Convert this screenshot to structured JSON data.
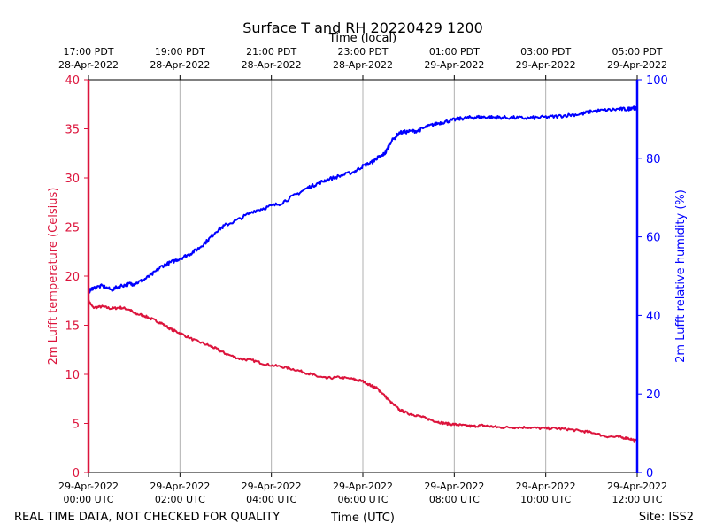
{
  "chart_data": {
    "type": "line",
    "title": "Surface T and RH 20220429 1200",
    "top_axis_label": "Time (local)",
    "xlabel": "Time (UTC)",
    "ylabel_left": "2m Lufft temperature (Celsius)",
    "ylabel_right": "2m Lufft relative humidity (%)",
    "footer_left": "REAL TIME DATA, NOT CHECKED FOR QUALITY",
    "footer_right": "Site: ISS2",
    "x_range_hours": [
      0,
      12
    ],
    "ylim_left": [
      0,
      40
    ],
    "ylim_right": [
      0,
      100
    ],
    "grid": "vertical",
    "colors": {
      "temperature": "#dc143c",
      "humidity": "#0000ff",
      "grid": "#b0b0b0",
      "axis": "#000000"
    },
    "x_ticks_bottom": [
      {
        "hour": 0,
        "line1": "29-Apr-2022",
        "line2": "00:00 UTC"
      },
      {
        "hour": 2,
        "line1": "29-Apr-2022",
        "line2": "02:00 UTC"
      },
      {
        "hour": 4,
        "line1": "29-Apr-2022",
        "line2": "04:00 UTC"
      },
      {
        "hour": 6,
        "line1": "29-Apr-2022",
        "line2": "06:00 UTC"
      },
      {
        "hour": 8,
        "line1": "29-Apr-2022",
        "line2": "08:00 UTC"
      },
      {
        "hour": 10,
        "line1": "29-Apr-2022",
        "line2": "10:00 UTC"
      },
      {
        "hour": 12,
        "line1": "29-Apr-2022",
        "line2": "12:00 UTC"
      }
    ],
    "x_ticks_top": [
      {
        "hour": 0,
        "line1": "17:00 PDT",
        "line2": "28-Apr-2022"
      },
      {
        "hour": 2,
        "line1": "19:00 PDT",
        "line2": "28-Apr-2022"
      },
      {
        "hour": 4,
        "line1": "21:00 PDT",
        "line2": "28-Apr-2022"
      },
      {
        "hour": 6,
        "line1": "23:00 PDT",
        "line2": "28-Apr-2022"
      },
      {
        "hour": 8,
        "line1": "01:00 PDT",
        "line2": "29-Apr-2022"
      },
      {
        "hour": 10,
        "line1": "03:00 PDT",
        "line2": "29-Apr-2022"
      },
      {
        "hour": 12,
        "line1": "05:00 PDT",
        "line2": "29-Apr-2022"
      }
    ],
    "y_ticks_left": [
      0,
      5,
      10,
      15,
      20,
      25,
      30,
      35,
      40
    ],
    "y_ticks_right": [
      0,
      20,
      40,
      60,
      80,
      100
    ],
    "series": [
      {
        "name": "Temperature",
        "axis": "left",
        "unit": "Celsius",
        "x": [
          0,
          0.1,
          0.3,
          0.5,
          0.7,
          0.9,
          1.0,
          1.2,
          1.4,
          1.6,
          1.8,
          2.0,
          2.3,
          2.6,
          2.8,
          3.0,
          3.3,
          3.6,
          3.9,
          4.2,
          4.5,
          4.8,
          5.0,
          5.2,
          5.5,
          5.8,
          6.0,
          6.2,
          6.3,
          6.4,
          6.6,
          6.8,
          7.0,
          7.2,
          7.4,
          7.6,
          7.8,
          8.0,
          8.2,
          8.4,
          8.6,
          8.8,
          9.0,
          9.3,
          9.6,
          9.9,
          10.2,
          10.5,
          10.8,
          11.0,
          11.3,
          11.6,
          11.8,
          12.0
        ],
        "y": [
          17.5,
          16.8,
          16.9,
          16.7,
          16.8,
          16.6,
          16.2,
          16.0,
          15.6,
          15.2,
          14.6,
          14.2,
          13.5,
          13.0,
          12.6,
          12.1,
          11.6,
          11.4,
          11.0,
          10.8,
          10.5,
          10.1,
          9.8,
          9.6,
          9.7,
          9.5,
          9.3,
          8.8,
          8.6,
          8.2,
          7.2,
          6.4,
          6.0,
          5.8,
          5.5,
          5.2,
          5.0,
          4.9,
          4.8,
          4.7,
          4.8,
          4.7,
          4.6,
          4.6,
          4.6,
          4.5,
          4.5,
          4.4,
          4.2,
          4.1,
          3.7,
          3.6,
          3.5,
          3.2
        ]
      },
      {
        "name": "Relative humidity",
        "axis": "right",
        "unit": "%",
        "x": [
          0,
          0.1,
          0.3,
          0.5,
          0.7,
          0.9,
          1.0,
          1.2,
          1.4,
          1.6,
          1.8,
          2.0,
          2.2,
          2.4,
          2.6,
          2.8,
          3.0,
          3.3,
          3.6,
          3.9,
          4.2,
          4.5,
          4.8,
          5.0,
          5.2,
          5.5,
          5.8,
          6.0,
          6.2,
          6.3,
          6.4,
          6.5,
          6.6,
          6.8,
          7.0,
          7.2,
          7.4,
          7.6,
          7.8,
          8.0,
          8.2,
          8.4,
          8.6,
          8.8,
          9.0,
          9.3,
          9.6,
          9.9,
          10.2,
          10.5,
          10.8,
          11.0,
          11.3,
          11.6,
          11.8,
          11.9,
          12.0
        ],
        "y": [
          46,
          47,
          47.5,
          46.5,
          47.5,
          48,
          48,
          49,
          50.5,
          52.5,
          53.5,
          54.5,
          55.5,
          57,
          59,
          61.5,
          63,
          64.5,
          66.5,
          67.5,
          68.5,
          70.5,
          72.5,
          73.5,
          74.5,
          75.5,
          76.5,
          78,
          79,
          80,
          80.5,
          81.5,
          84,
          86.5,
          86.8,
          87,
          88,
          88.8,
          89.3,
          89.8,
          90.2,
          90.4,
          90.5,
          90.4,
          90.4,
          90.3,
          90.2,
          90.4,
          90.6,
          91,
          91.3,
          92,
          92.2,
          92.5,
          92.5,
          93,
          92.5
        ]
      }
    ]
  }
}
